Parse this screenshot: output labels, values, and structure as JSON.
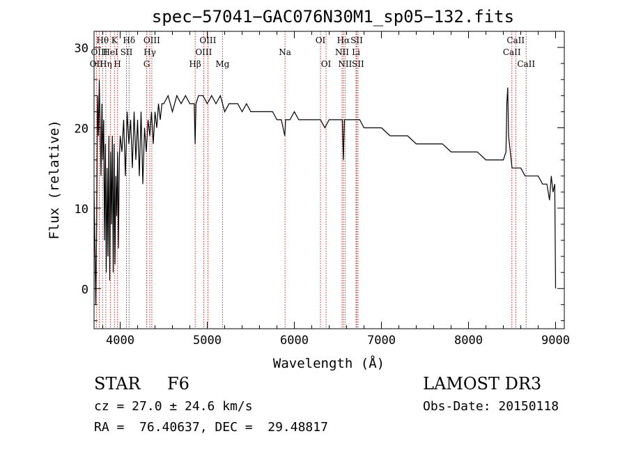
{
  "chart_data": {
    "type": "line",
    "title": "spec−57041−GAC076N30M1_sp05−132.fits",
    "xlabel": "Wavelength (Å)",
    "ylabel": "Flux (relative)",
    "xlim": [
      3700,
      9100
    ],
    "ylim": [
      -5,
      32
    ],
    "xticks": [
      4000,
      5000,
      6000,
      7000,
      8000,
      9000
    ],
    "yticks": [
      0,
      10,
      20,
      30
    ],
    "series": [
      {
        "name": "flux",
        "x": [
          3700,
          3710,
          3720,
          3730,
          3740,
          3750,
          3760,
          3770,
          3780,
          3790,
          3800,
          3810,
          3820,
          3830,
          3840,
          3850,
          3860,
          3870,
          3880,
          3890,
          3900,
          3910,
          3920,
          3930,
          3940,
          3950,
          3960,
          3970,
          3980,
          3990,
          4000,
          4020,
          4040,
          4060,
          4080,
          4100,
          4120,
          4140,
          4160,
          4180,
          4200,
          4220,
          4240,
          4260,
          4280,
          4300,
          4320,
          4340,
          4360,
          4380,
          4400,
          4420,
          4440,
          4460,
          4480,
          4500,
          4550,
          4600,
          4650,
          4700,
          4750,
          4800,
          4850,
          4861,
          4870,
          4900,
          4950,
          5000,
          5050,
          5100,
          5150,
          5200,
          5250,
          5300,
          5350,
          5400,
          5450,
          5500,
          5550,
          5600,
          5650,
          5700,
          5750,
          5800,
          5850,
          5890,
          5900,
          5950,
          6000,
          6050,
          6100,
          6150,
          6200,
          6250,
          6300,
          6350,
          6400,
          6450,
          6500,
          6550,
          6563,
          6575,
          6600,
          6650,
          6700,
          6750,
          6800,
          6850,
          6900,
          6950,
          7000,
          7100,
          7200,
          7300,
          7400,
          7500,
          7600,
          7700,
          7800,
          7900,
          8000,
          8100,
          8200,
          8300,
          8350,
          8400,
          8430,
          8440,
          8450,
          8460,
          8500,
          8550,
          8600,
          8650,
          8700,
          8750,
          8800,
          8850,
          8900,
          8930,
          8950,
          8970,
          8990,
          9000
        ],
        "values": [
          12,
          5,
          -2,
          8,
          24,
          19,
          26,
          20,
          14,
          23,
          16,
          21,
          6,
          18,
          2,
          15,
          4,
          19,
          1,
          17,
          8,
          19,
          2,
          18,
          3,
          14,
          9,
          17,
          5,
          16,
          19,
          17,
          21,
          14,
          22,
          18,
          21,
          15,
          22,
          16,
          21,
          14,
          22,
          13,
          20,
          17,
          21,
          19,
          22,
          18,
          22,
          20,
          23,
          21,
          23,
          23,
          24,
          22,
          24,
          23,
          24,
          23,
          23,
          18,
          23,
          24,
          24,
          23,
          24,
          23,
          24,
          22,
          23,
          23,
          23,
          22,
          23,
          22,
          22,
          22,
          22,
          22,
          22,
          21,
          21,
          19,
          21,
          21,
          22,
          21,
          21,
          21,
          21,
          21,
          21,
          20,
          21,
          21,
          21,
          21,
          16,
          21,
          21,
          21,
          21,
          21,
          20,
          20,
          20,
          20,
          20,
          19,
          19,
          19,
          18,
          18,
          18,
          18,
          17,
          17,
          17,
          17,
          16,
          16,
          16,
          16,
          17,
          23,
          25,
          19,
          15,
          15,
          15,
          14,
          14,
          14,
          14,
          13,
          13,
          11,
          14,
          12,
          13,
          0
        ]
      }
    ],
    "lines": [
      {
        "name": "CaII K",
        "x": 3934,
        "label": "K",
        "row": 1
      },
      {
        "name": "CaII H",
        "x": 3969,
        "label": "H",
        "row": 3
      },
      {
        "name": "OII",
        "x": 3727,
        "label": "OII",
        "row": 3
      },
      {
        "name": "H-eta",
        "x": 3835,
        "label": "Hη",
        "row": 3
      },
      {
        "name": "H-theta",
        "x": 3798,
        "label": "Hθ",
        "row": 1
      },
      {
        "name": "HeI",
        "x": 3889,
        "label": "HeI",
        "row": 2
      },
      {
        "name": "OIII",
        "x": 3760,
        "label": "OIII",
        "row": 2
      },
      {
        "name": "SII",
        "x": 4072,
        "label": "SII",
        "row": 2
      },
      {
        "name": "H-delta",
        "x": 4102,
        "label": "Hδ",
        "row": 1
      },
      {
        "name": "OIII 4363",
        "x": 4363,
        "label": "OIII",
        "row": 1
      },
      {
        "name": "H-gamma",
        "x": 4340,
        "label": "Hγ",
        "row": 2
      },
      {
        "name": "G band",
        "x": 4304,
        "label": "G",
        "row": 3
      },
      {
        "name": "H-beta",
        "x": 4861,
        "label": "Hβ",
        "row": 3
      },
      {
        "name": "OIII 4959",
        "x": 4959,
        "label": "OIII",
        "row": 2
      },
      {
        "name": "OIII 5007",
        "x": 5007,
        "label": "OIII",
        "row": 1
      },
      {
        "name": "Mg",
        "x": 5175,
        "label": "Mg",
        "row": 3
      },
      {
        "name": "Na",
        "x": 5893,
        "label": "Na",
        "row": 2
      },
      {
        "name": "OI 6300",
        "x": 6300,
        "label": "OI",
        "row": 1
      },
      {
        "name": "OI 6364",
        "x": 6364,
        "label": "OI",
        "row": 3
      },
      {
        "name": "NII 6548",
        "x": 6548,
        "label": "NII",
        "row": 2
      },
      {
        "name": "H-alpha",
        "x": 6563,
        "label": "Hα",
        "row": 1
      },
      {
        "name": "NII 6583",
        "x": 6583,
        "label": "NII",
        "row": 3
      },
      {
        "name": "Li",
        "x": 6708,
        "label": "Li",
        "row": 2
      },
      {
        "name": "SII 6716",
        "x": 6716,
        "label": "SII",
        "row": 1
      },
      {
        "name": "SII 6731",
        "x": 6731,
        "label": "SII",
        "row": 3
      },
      {
        "name": "CaII 8498",
        "x": 8498,
        "label": "CaII",
        "row": 2
      },
      {
        "name": "CaII 8542",
        "x": 8542,
        "label": "CaII",
        "row": 1
      },
      {
        "name": "CaII 8662",
        "x": 8662,
        "label": "CaII",
        "row": 3
      }
    ]
  },
  "info": {
    "class": "STAR",
    "subclass": "F6",
    "survey": "LAMOST DR3",
    "cz": "cz = 27.0 ± 24.6 km/s",
    "obsdate": "Obs-Date: 20150118",
    "radec": "RA =  76.40637, DEC =  29.48817"
  },
  "colors": {
    "line_marker": "#cc2222",
    "spectrum": "#000000"
  }
}
